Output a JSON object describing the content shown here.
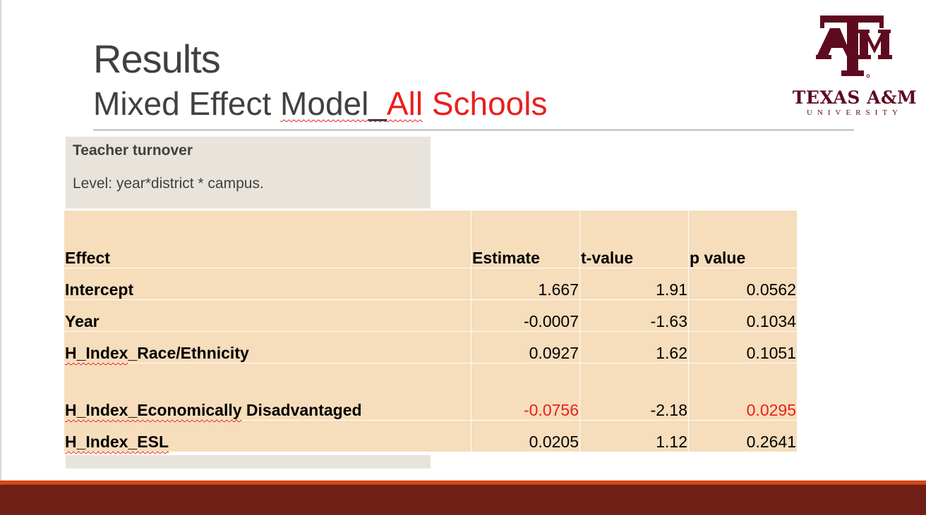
{
  "slide": {
    "title": "Results",
    "subtitle_part1": "Mixed Effect ",
    "subtitle_part2": "Model_",
    "subtitle_part3": "All",
    "subtitle_part4": " Schools"
  },
  "logo": {
    "monogram": "ATM",
    "name": "TEXAS A&M",
    "university": "UNIVERSITY",
    "color": "#5e0b1f"
  },
  "info_box": {
    "heading": "Teacher turnover",
    "level": "Level: year*district * campus."
  },
  "table": {
    "headers": [
      "Effect",
      "Estimate",
      "t-value",
      "p value"
    ],
    "rows": [
      {
        "effect": "Intercept",
        "estimate": "1.667",
        "t_value": "1.91",
        "p_value": "0.0562"
      },
      {
        "effect": "Year",
        "estimate": "-0.0007",
        "t_value": "-1.63",
        "p_value": "0.1034"
      },
      {
        "effect_a": "H_Index",
        "effect_b": "_Race/Ethnicity",
        "estimate": "0.0927",
        "t_value": "1.62",
        "p_value": "0.1051"
      },
      {
        "effect_a": "H_Index_Economically",
        "effect_b": " Disadvantaged",
        "estimate": "-0.0756",
        "t_value": "-2.18",
        "p_value": "0.0295"
      },
      {
        "effect_a": "H_Index_ESL",
        "estimate": "0.0205",
        "t_value": "1.12",
        "p_value": "0.2641"
      }
    ],
    "highlight_color": "#e8201e"
  },
  "colors": {
    "accent_red": "#e8201e",
    "table_fill": "#f6ddbb",
    "info_fill": "#e8e4dc",
    "footer_orange": "#d24718",
    "footer_maroon": "#701f16"
  }
}
